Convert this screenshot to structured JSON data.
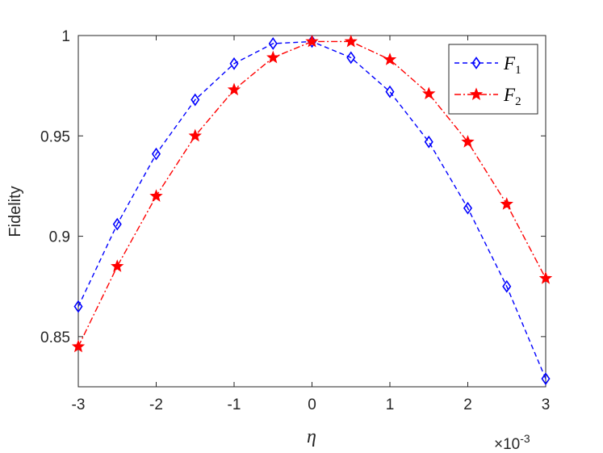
{
  "chart_data": {
    "type": "line",
    "title": "",
    "xlabel": "η",
    "ylabel": "Fidelity",
    "x_exponent_label": "×10",
    "x_exponent_power": "-3",
    "xlim": [
      -3,
      3
    ],
    "ylim": [
      0.825,
      1.0
    ],
    "x_ticks": [
      -3,
      -2,
      -1,
      0,
      1,
      2,
      3
    ],
    "x_tick_labels": [
      "-3",
      "-2",
      "-1",
      "0",
      "1",
      "2",
      "3"
    ],
    "y_ticks": [
      0.85,
      0.9,
      0.95,
      1.0
    ],
    "y_tick_labels": [
      "0.85",
      "0.9",
      "0.95",
      "1"
    ],
    "grid": false,
    "legend_position": "top-right",
    "x": [
      -3,
      -2.5,
      -2,
      -1.5,
      -1,
      -0.5,
      0,
      0.5,
      1,
      1.5,
      2,
      2.5,
      3
    ],
    "series": [
      {
        "name": "F",
        "name_sub": "1",
        "color": "#0000ff",
        "line_style": "dashed",
        "marker": "diamond",
        "values": [
          0.865,
          0.906,
          0.941,
          0.968,
          0.986,
          0.996,
          0.997,
          0.989,
          0.972,
          0.947,
          0.914,
          0.875,
          0.829
        ]
      },
      {
        "name": "F",
        "name_sub": "2",
        "color": "#ff0000",
        "line_style": "dashdot",
        "marker": "star",
        "values": [
          0.845,
          0.885,
          0.92,
          0.95,
          0.973,
          0.989,
          0.997,
          0.997,
          0.988,
          0.971,
          0.947,
          0.916,
          0.879
        ]
      }
    ]
  }
}
